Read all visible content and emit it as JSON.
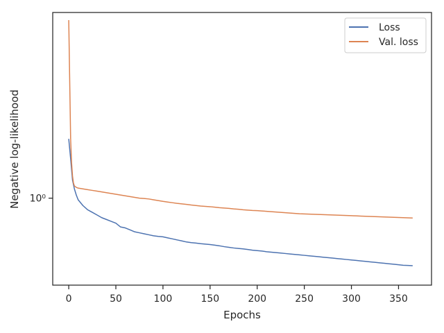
{
  "chart_data": {
    "type": "line",
    "title": "",
    "xlabel": "Epochs",
    "ylabel": "Negative log-likelihood",
    "yscale": "log",
    "xlim": [
      -17,
      385
    ],
    "ylim": [
      0.58,
      3.2
    ],
    "grid": false,
    "legend_position": "top-right",
    "x_ticks": [
      0,
      50,
      100,
      150,
      200,
      250,
      300,
      350
    ],
    "y_ticks": [
      1.0
    ],
    "y_tick_labels": [
      "10⁰"
    ],
    "series": [
      {
        "name": "Loss",
        "color": "#4c72b0",
        "x": [
          0,
          2,
          4,
          6,
          8,
          10,
          15,
          20,
          25,
          30,
          35,
          40,
          45,
          50,
          55,
          60,
          65,
          70,
          75,
          80,
          85,
          90,
          95,
          100,
          105,
          110,
          115,
          120,
          125,
          130,
          135,
          140,
          145,
          150,
          155,
          160,
          165,
          170,
          175,
          180,
          185,
          190,
          195,
          200,
          205,
          210,
          215,
          220,
          225,
          230,
          235,
          240,
          245,
          250,
          255,
          260,
          265,
          270,
          275,
          280,
          285,
          290,
          295,
          300,
          305,
          310,
          315,
          320,
          325,
          330,
          335,
          340,
          345,
          350,
          355,
          360,
          365
        ],
        "y": [
          1.45,
          1.28,
          1.12,
          1.06,
          1.02,
          0.99,
          0.955,
          0.93,
          0.915,
          0.9,
          0.885,
          0.875,
          0.865,
          0.855,
          0.835,
          0.83,
          0.82,
          0.81,
          0.805,
          0.8,
          0.795,
          0.79,
          0.787,
          0.785,
          0.78,
          0.775,
          0.77,
          0.765,
          0.76,
          0.757,
          0.755,
          0.752,
          0.75,
          0.748,
          0.745,
          0.742,
          0.738,
          0.735,
          0.732,
          0.73,
          0.728,
          0.725,
          0.722,
          0.72,
          0.718,
          0.715,
          0.713,
          0.711,
          0.709,
          0.707,
          0.705,
          0.703,
          0.701,
          0.699,
          0.697,
          0.695,
          0.693,
          0.691,
          0.689,
          0.687,
          0.685,
          0.683,
          0.681,
          0.679,
          0.677,
          0.675,
          0.673,
          0.671,
          0.669,
          0.667,
          0.665,
          0.663,
          0.661,
          0.659,
          0.657,
          0.656,
          0.655
        ]
      },
      {
        "name": "Val. loss",
        "color": "#dd8452",
        "x": [
          0,
          1,
          2,
          3,
          4,
          5,
          6,
          8,
          10,
          15,
          20,
          25,
          30,
          35,
          40,
          45,
          50,
          55,
          60,
          65,
          70,
          75,
          80,
          85,
          90,
          95,
          100,
          105,
          110,
          115,
          120,
          125,
          130,
          135,
          140,
          145,
          150,
          155,
          160,
          165,
          170,
          175,
          180,
          185,
          190,
          195,
          200,
          205,
          210,
          215,
          220,
          225,
          230,
          235,
          240,
          245,
          250,
          255,
          260,
          265,
          270,
          275,
          280,
          285,
          290,
          295,
          300,
          305,
          310,
          315,
          320,
          325,
          330,
          335,
          340,
          345,
          350,
          355,
          360,
          365
        ],
        "y": [
          3.05,
          2.1,
          1.45,
          1.25,
          1.15,
          1.1,
          1.08,
          1.07,
          1.065,
          1.06,
          1.055,
          1.05,
          1.045,
          1.04,
          1.035,
          1.03,
          1.025,
          1.02,
          1.015,
          1.01,
          1.005,
          1.0,
          0.998,
          0.995,
          0.99,
          0.985,
          0.98,
          0.976,
          0.972,
          0.968,
          0.965,
          0.962,
          0.958,
          0.955,
          0.952,
          0.95,
          0.948,
          0.945,
          0.942,
          0.94,
          0.938,
          0.935,
          0.933,
          0.93,
          0.928,
          0.926,
          0.925,
          0.923,
          0.921,
          0.919,
          0.917,
          0.915,
          0.913,
          0.911,
          0.909,
          0.907,
          0.906,
          0.905,
          0.904,
          0.903,
          0.902,
          0.901,
          0.9,
          0.899,
          0.898,
          0.897,
          0.896,
          0.895,
          0.894,
          0.893,
          0.892,
          0.891,
          0.89,
          0.889,
          0.888,
          0.887,
          0.886,
          0.885,
          0.884,
          0.883
        ]
      }
    ]
  }
}
